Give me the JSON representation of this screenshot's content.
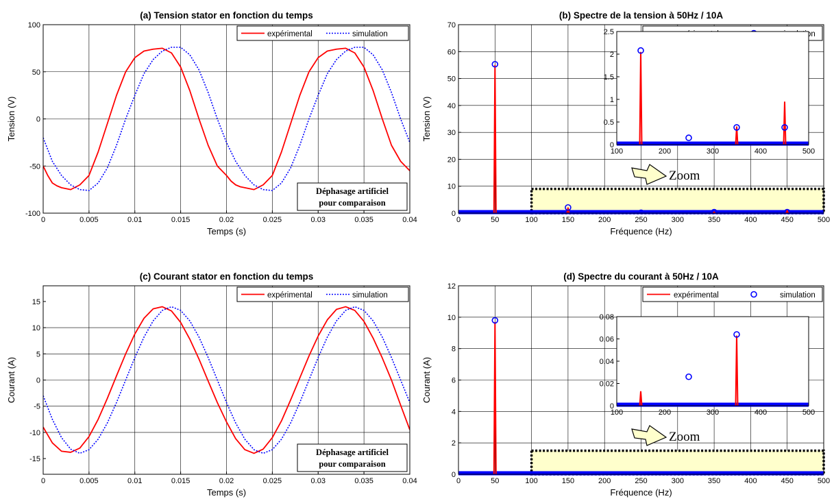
{
  "colors": {
    "experimental": "#ff0000",
    "simulation": "#0000ff",
    "zoom_fill": "#ffffcc",
    "grid": "#000000"
  },
  "chart_data": [
    {
      "type": "line",
      "title": "(a) Tension stator en fonction du temps",
      "xlabel": "Temps (s)",
      "ylabel": "Tension (V)",
      "xlim": [
        0,
        0.04
      ],
      "ylim": [
        -100,
        100
      ],
      "xticks": [
        0,
        0.005,
        0.01,
        0.015,
        0.02,
        0.025,
        0.03,
        0.035,
        0.04
      ],
      "xtick_labels": [
        "0",
        "0.005",
        "0.01",
        "0.015",
        "0.02",
        "0.025",
        "0.03",
        "0.035",
        "0.04"
      ],
      "yticks": [
        -100,
        -50,
        0,
        50,
        100
      ],
      "ytick_labels": [
        "-100",
        "-50",
        "0",
        "50",
        "100"
      ],
      "grid": true,
      "legend_position": "top-right",
      "annotation": [
        "Déphasage artificiel",
        "pour comparaison"
      ],
      "series": [
        {
          "name": "expérimental",
          "style": "solid",
          "x": [
            0,
            0.0005,
            0.001,
            0.0015,
            0.002,
            0.0025,
            0.003,
            0.004,
            0.005,
            0.006,
            0.007,
            0.008,
            0.009,
            0.01,
            0.011,
            0.012,
            0.013,
            0.014,
            0.015,
            0.016,
            0.017,
            0.018,
            0.019,
            0.02,
            0.0205,
            0.021,
            0.0215,
            0.022,
            0.0225,
            0.023,
            0.024,
            0.025,
            0.026,
            0.027,
            0.028,
            0.029,
            0.03,
            0.031,
            0.032,
            0.033,
            0.034,
            0.035,
            0.036,
            0.037,
            0.038,
            0.039,
            0.04
          ],
          "y": [
            -50,
            -60,
            -68,
            -71,
            -73,
            -74,
            -75,
            -70,
            -60,
            -35,
            -5,
            25,
            50,
            65,
            72,
            74,
            75,
            70,
            55,
            30,
            0,
            -28,
            -50,
            -60,
            -66,
            -70,
            -72,
            -73,
            -74,
            -75,
            -70,
            -60,
            -35,
            -5,
            25,
            50,
            65,
            72,
            74,
            75,
            70,
            55,
            30,
            0,
            -28,
            -45,
            -55
          ]
        },
        {
          "name": "simulation",
          "style": "dotted",
          "x": [
            0,
            0.001,
            0.002,
            0.003,
            0.004,
            0.005,
            0.006,
            0.007,
            0.008,
            0.009,
            0.01,
            0.011,
            0.012,
            0.013,
            0.014,
            0.015,
            0.016,
            0.017,
            0.018,
            0.019,
            0.02,
            0.021,
            0.022,
            0.023,
            0.024,
            0.025,
            0.026,
            0.027,
            0.028,
            0.029,
            0.03,
            0.031,
            0.032,
            0.033,
            0.034,
            0.035,
            0.036,
            0.037,
            0.038,
            0.039,
            0.04
          ],
          "y": [
            -20,
            -45,
            -60,
            -70,
            -75,
            -76,
            -68,
            -52,
            -28,
            0,
            25,
            48,
            63,
            72,
            76,
            76,
            68,
            52,
            28,
            0,
            -25,
            -45,
            -60,
            -70,
            -75,
            -76,
            -68,
            -52,
            -28,
            0,
            25,
            48,
            63,
            72,
            76,
            76,
            68,
            52,
            28,
            0,
            -25
          ]
        }
      ]
    },
    {
      "type": "stem",
      "title": "(b) Spectre de la tension à 50Hz / 10A",
      "xlabel": "Fréquence (Hz)",
      "ylabel": "Tension (V)",
      "xlim": [
        0,
        500
      ],
      "ylim": [
        0,
        70
      ],
      "xticks": [
        0,
        50,
        100,
        150,
        200,
        250,
        300,
        350,
        400,
        450,
        500
      ],
      "xtick_labels": [
        "0",
        "50",
        "100",
        "150",
        "200",
        "250",
        "300",
        "350",
        "400",
        "450",
        "500"
      ],
      "yticks": [
        0,
        10,
        20,
        30,
        40,
        50,
        60,
        70
      ],
      "ytick_labels": [
        "0",
        "10",
        "20",
        "30",
        "40",
        "50",
        "60",
        "70"
      ],
      "grid": true,
      "legend_position": "top-right",
      "zoom_label": "Zoom",
      "zoom_region": {
        "x": [
          100,
          500
        ],
        "y": [
          0,
          9
        ]
      },
      "series": [
        {
          "name": "expérimental",
          "style": "stem",
          "x": [
            50,
            150,
            350,
            450
          ],
          "y": [
            55,
            2.1,
            0.4,
            0.95
          ]
        },
        {
          "name": "simulation",
          "style": "circle",
          "x": [
            50,
            150,
            250,
            350,
            450
          ],
          "y": [
            55.3,
            2.1,
            0.15,
            0.38,
            0.38
          ]
        }
      ],
      "inset": {
        "xlim": [
          100,
          500
        ],
        "ylim": [
          0,
          2.5
        ],
        "xticks": [
          100,
          200,
          300,
          400,
          500
        ],
        "xtick_labels": [
          "100",
          "200",
          "300",
          "400",
          "500"
        ],
        "yticks": [
          0,
          0.5,
          1,
          1.5,
          2,
          2.5
        ],
        "ytick_labels": [
          "0",
          "0.5",
          "1",
          "1.5",
          "2",
          "2.5"
        ],
        "series": [
          {
            "name": "expérimental",
            "style": "stem",
            "x": [
              150,
              350,
              450
            ],
            "y": [
              2.05,
              0.4,
              0.95
            ]
          },
          {
            "name": "simulation",
            "style": "circle",
            "x": [
              150,
              250,
              350,
              450
            ],
            "y": [
              2.08,
              0.15,
              0.38,
              0.38
            ]
          }
        ]
      }
    },
    {
      "type": "line",
      "title": "(c) Courant stator en fonction du temps",
      "xlabel": "Temps (s)",
      "ylabel": "Courant (A)",
      "xlim": [
        0,
        0.04
      ],
      "ylim": [
        -18,
        18
      ],
      "xticks": [
        0,
        0.005,
        0.01,
        0.015,
        0.02,
        0.025,
        0.03,
        0.035,
        0.04
      ],
      "xtick_labels": [
        "0",
        "0.005",
        "0.01",
        "0.015",
        "0.02",
        "0.025",
        "0.03",
        "0.035",
        "0.04"
      ],
      "yticks": [
        -15,
        -10,
        -5,
        0,
        5,
        10,
        15
      ],
      "ytick_labels": [
        "-15",
        "-10",
        "-5",
        "0",
        "5",
        "10",
        "15"
      ],
      "grid": true,
      "legend_position": "top-right",
      "annotation": [
        "Déphasage artificiel",
        "pour comparaison"
      ],
      "series": [
        {
          "name": "expérimental",
          "style": "solid",
          "x": [
            0,
            0.001,
            0.002,
            0.003,
            0.004,
            0.005,
            0.006,
            0.007,
            0.008,
            0.009,
            0.01,
            0.011,
            0.012,
            0.013,
            0.014,
            0.015,
            0.016,
            0.017,
            0.018,
            0.019,
            0.02,
            0.021,
            0.022,
            0.023,
            0.024,
            0.025,
            0.026,
            0.027,
            0.028,
            0.029,
            0.03,
            0.031,
            0.032,
            0.033,
            0.034,
            0.035,
            0.036,
            0.037,
            0.038,
            0.039,
            0.04
          ],
          "y": [
            -9,
            -12,
            -13.6,
            -13.8,
            -13,
            -10.8,
            -7.5,
            -3.5,
            0.8,
            5,
            8.8,
            11.8,
            13.6,
            14,
            13.2,
            11,
            7.8,
            4,
            -0.2,
            -4.3,
            -8,
            -11.2,
            -13.3,
            -14,
            -13.2,
            -11,
            -7.8,
            -3.8,
            0.4,
            4.6,
            8.4,
            11.5,
            13.5,
            14,
            13.3,
            11.2,
            8,
            4.2,
            0,
            -4.8,
            -9.5
          ]
        },
        {
          "name": "simulation",
          "style": "dotted",
          "x": [
            0,
            0.001,
            0.002,
            0.003,
            0.004,
            0.005,
            0.006,
            0.007,
            0.008,
            0.009,
            0.01,
            0.011,
            0.012,
            0.013,
            0.014,
            0.015,
            0.016,
            0.017,
            0.018,
            0.019,
            0.02,
            0.021,
            0.022,
            0.023,
            0.024,
            0.025,
            0.026,
            0.027,
            0.028,
            0.029,
            0.03,
            0.031,
            0.032,
            0.033,
            0.034,
            0.035,
            0.036,
            0.037,
            0.038,
            0.039,
            0.04
          ],
          "y": [
            -3,
            -7.5,
            -11,
            -13.2,
            -14,
            -13.3,
            -11.3,
            -8.2,
            -4.3,
            0,
            4.3,
            8.2,
            11.3,
            13.3,
            14,
            13.3,
            11.3,
            8.2,
            4.3,
            0,
            -4.3,
            -8.2,
            -11.3,
            -13.3,
            -14,
            -13.3,
            -11.3,
            -8.2,
            -4.3,
            0,
            4.3,
            8.2,
            11.3,
            13.3,
            14,
            13.3,
            11.3,
            8.2,
            4.3,
            0,
            -4.3
          ]
        }
      ]
    },
    {
      "type": "stem",
      "title": "(d) Spectre du courant à 50Hz / 10A",
      "xlabel": "Fréquence (Hz)",
      "ylabel": "Courant (A)",
      "xlim": [
        0,
        500
      ],
      "ylim": [
        0,
        12
      ],
      "xticks": [
        0,
        50,
        100,
        150,
        200,
        250,
        300,
        350,
        400,
        450,
        500
      ],
      "xtick_labels": [
        "0",
        "50",
        "100",
        "150",
        "200",
        "250",
        "300",
        "350",
        "400",
        "450",
        "500"
      ],
      "yticks": [
        0,
        2,
        4,
        6,
        8,
        10,
        12
      ],
      "ytick_labels": [
        "0",
        "2",
        "4",
        "6",
        "8",
        "10",
        "12"
      ],
      "grid": true,
      "legend_position": "top-right",
      "zoom_label": "Zoom",
      "zoom_region": {
        "x": [
          100,
          500
        ],
        "y": [
          0,
          1.5
        ]
      },
      "series": [
        {
          "name": "expérimental",
          "style": "stem",
          "x": [
            50
          ],
          "y": [
            9.7
          ]
        },
        {
          "name": "simulation",
          "style": "circle",
          "x": [
            50
          ],
          "y": [
            9.8
          ]
        }
      ],
      "inset": {
        "xlim": [
          100,
          500
        ],
        "ylim": [
          0,
          0.08
        ],
        "xticks": [
          100,
          200,
          300,
          400,
          500
        ],
        "xtick_labels": [
          "100",
          "200",
          "300",
          "400",
          "500"
        ],
        "yticks": [
          0,
          0.02,
          0.04,
          0.06,
          0.08
        ],
        "ytick_labels": [
          "0",
          "0.02",
          "0.04",
          "0.06",
          "0.08"
        ],
        "series": [
          {
            "name": "expérimental",
            "style": "stem",
            "x": [
              150,
              350
            ],
            "y": [
              0.013,
              0.063
            ]
          },
          {
            "name": "simulation",
            "style": "circle",
            "x": [
              250,
              350
            ],
            "y": [
              0.026,
              0.064
            ]
          }
        ]
      }
    }
  ]
}
